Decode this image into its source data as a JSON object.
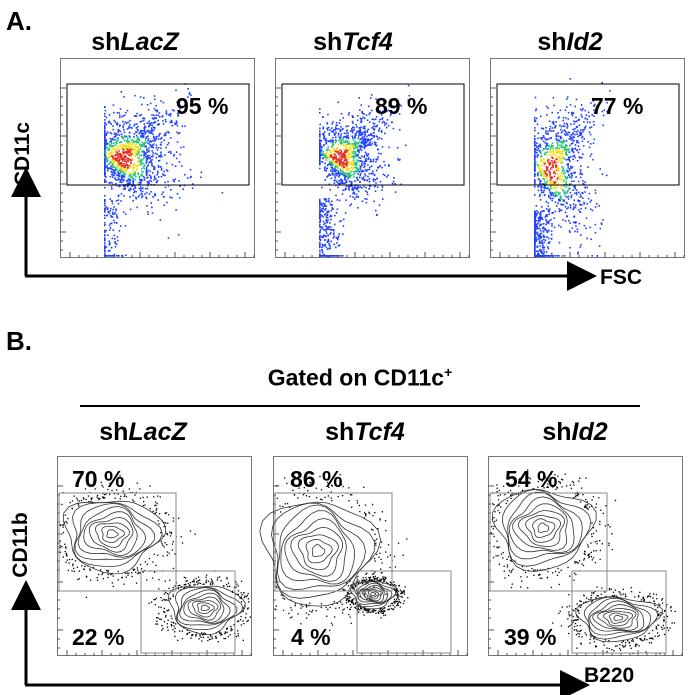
{
  "panelA": {
    "letter": "A.",
    "samples": [
      {
        "prefix": "sh",
        "gene": "LacZ",
        "percent": "95 %"
      },
      {
        "prefix": "sh",
        "gene": "Tcf4",
        "percent": "89 %"
      },
      {
        "prefix": "sh",
        "gene": "Id2",
        "percent": "77 %"
      }
    ],
    "y_axis": "CD11c",
    "x_axis": "FSC"
  },
  "panelB": {
    "letter": "B.",
    "gating_label": "Gated on CD11c",
    "gating_superscript": "+",
    "samples": [
      {
        "prefix": "sh",
        "gene": "LacZ",
        "upper_percent": "70 %",
        "lower_percent": "22 %"
      },
      {
        "prefix": "sh",
        "gene": "Tcf4",
        "upper_percent": "86 %",
        "lower_percent": "4 %"
      },
      {
        "prefix": "sh",
        "gene": "Id2",
        "upper_percent": "54 %",
        "lower_percent": "39 %"
      }
    ],
    "y_axis": "CD11b",
    "x_axis": "B220"
  },
  "colors": {
    "density_low": "#1f3fff",
    "density_mid": "#22c07a",
    "density_high": "#f0e020",
    "density_peak": "#e8281e",
    "gate": "#000000",
    "contour": "#333333"
  }
}
